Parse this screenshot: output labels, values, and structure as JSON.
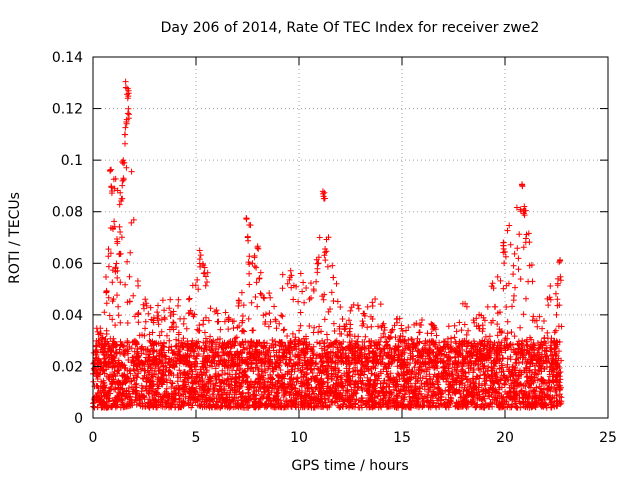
{
  "chart_data": {
    "type": "scatter",
    "title": "Day 206 of 2014, Rate Of TEC Index for receiver zwe2",
    "xlabel": "GPS time / hours",
    "ylabel": "ROTI / TECUs",
    "xlim": [
      0,
      25
    ],
    "ylim": [
      0,
      0.14
    ],
    "xticks": [
      0,
      5,
      10,
      15,
      20,
      25
    ],
    "xtick_labels": [
      "0",
      "5",
      "10",
      "15",
      "20",
      "25"
    ],
    "yticks": [
      0,
      0.02,
      0.04,
      0.06,
      0.08,
      0.1,
      0.12,
      0.14
    ],
    "ytick_labels": [
      "0",
      "0.02",
      "0.04",
      "0.06",
      "0.08",
      "0.1",
      "0.12",
      "0.14"
    ],
    "grid": true,
    "marker": "+",
    "series": [
      {
        "name": "ROTI",
        "color": "#ff0000",
        "x_range": [
          0,
          22.75
        ],
        "typical_range": [
          0.004,
          0.03
        ],
        "envelope": [
          {
            "x": 0.0,
            "ymax": 0.038
          },
          {
            "x": 0.5,
            "ymax": 0.035
          },
          {
            "x": 0.9,
            "ymax": 0.097
          },
          {
            "x": 1.3,
            "ymax": 0.09
          },
          {
            "x": 1.7,
            "ymax": 0.132
          },
          {
            "x": 2.2,
            "ymax": 0.05
          },
          {
            "x": 3.0,
            "ymax": 0.042
          },
          {
            "x": 3.5,
            "ymax": 0.05
          },
          {
            "x": 4.5,
            "ymax": 0.045
          },
          {
            "x": 5.3,
            "ymax": 0.065
          },
          {
            "x": 6.0,
            "ymax": 0.044
          },
          {
            "x": 7.0,
            "ymax": 0.04
          },
          {
            "x": 7.5,
            "ymax": 0.08
          },
          {
            "x": 8.0,
            "ymax": 0.067
          },
          {
            "x": 8.5,
            "ymax": 0.05
          },
          {
            "x": 9.5,
            "ymax": 0.058
          },
          {
            "x": 10.5,
            "ymax": 0.055
          },
          {
            "x": 11.2,
            "ymax": 0.089
          },
          {
            "x": 12.0,
            "ymax": 0.048
          },
          {
            "x": 13.0,
            "ymax": 0.045
          },
          {
            "x": 13.5,
            "ymax": 0.05
          },
          {
            "x": 14.5,
            "ymax": 0.04
          },
          {
            "x": 16.0,
            "ymax": 0.038
          },
          {
            "x": 17.0,
            "ymax": 0.035
          },
          {
            "x": 18.0,
            "ymax": 0.045
          },
          {
            "x": 19.0,
            "ymax": 0.04
          },
          {
            "x": 19.9,
            "ymax": 0.07
          },
          {
            "x": 20.9,
            "ymax": 0.091
          },
          {
            "x": 21.5,
            "ymax": 0.05
          },
          {
            "x": 22.0,
            "ymax": 0.045
          },
          {
            "x": 22.6,
            "ymax": 0.064
          },
          {
            "x": 22.75,
            "ymax": 0.055
          }
        ],
        "spike_points": [
          {
            "x": 1.62,
            "y": 0.131
          },
          {
            "x": 1.65,
            "y": 0.128
          },
          {
            "x": 1.7,
            "y": 0.127
          },
          {
            "x": 1.72,
            "y": 0.12
          },
          {
            "x": 1.6,
            "y": 0.115
          },
          {
            "x": 1.55,
            "y": 0.11
          },
          {
            "x": 1.5,
            "y": 0.1
          },
          {
            "x": 1.45,
            "y": 0.093
          },
          {
            "x": 1.4,
            "y": 0.088
          },
          {
            "x": 0.85,
            "y": 0.097
          },
          {
            "x": 0.9,
            "y": 0.09
          },
          {
            "x": 1.2,
            "y": 0.07
          },
          {
            "x": 1.0,
            "y": 0.077
          },
          {
            "x": 1.3,
            "y": 0.065
          },
          {
            "x": 1.1,
            "y": 0.06
          },
          {
            "x": 5.2,
            "y": 0.065
          },
          {
            "x": 5.4,
            "y": 0.06
          },
          {
            "x": 5.5,
            "y": 0.055
          },
          {
            "x": 7.45,
            "y": 0.079
          },
          {
            "x": 7.5,
            "y": 0.072
          },
          {
            "x": 7.55,
            "y": 0.063
          },
          {
            "x": 8.0,
            "y": 0.067
          },
          {
            "x": 9.6,
            "y": 0.058
          },
          {
            "x": 11.2,
            "y": 0.089
          },
          {
            "x": 11.22,
            "y": 0.086
          },
          {
            "x": 11.25,
            "y": 0.065
          },
          {
            "x": 10.9,
            "y": 0.06
          },
          {
            "x": 19.9,
            "y": 0.07
          },
          {
            "x": 19.95,
            "y": 0.067
          },
          {
            "x": 20.85,
            "y": 0.091
          },
          {
            "x": 20.9,
            "y": 0.084
          },
          {
            "x": 20.95,
            "y": 0.081
          },
          {
            "x": 21.05,
            "y": 0.072
          },
          {
            "x": 22.65,
            "y": 0.064
          },
          {
            "x": 22.6,
            "y": 0.055
          }
        ]
      }
    ]
  }
}
